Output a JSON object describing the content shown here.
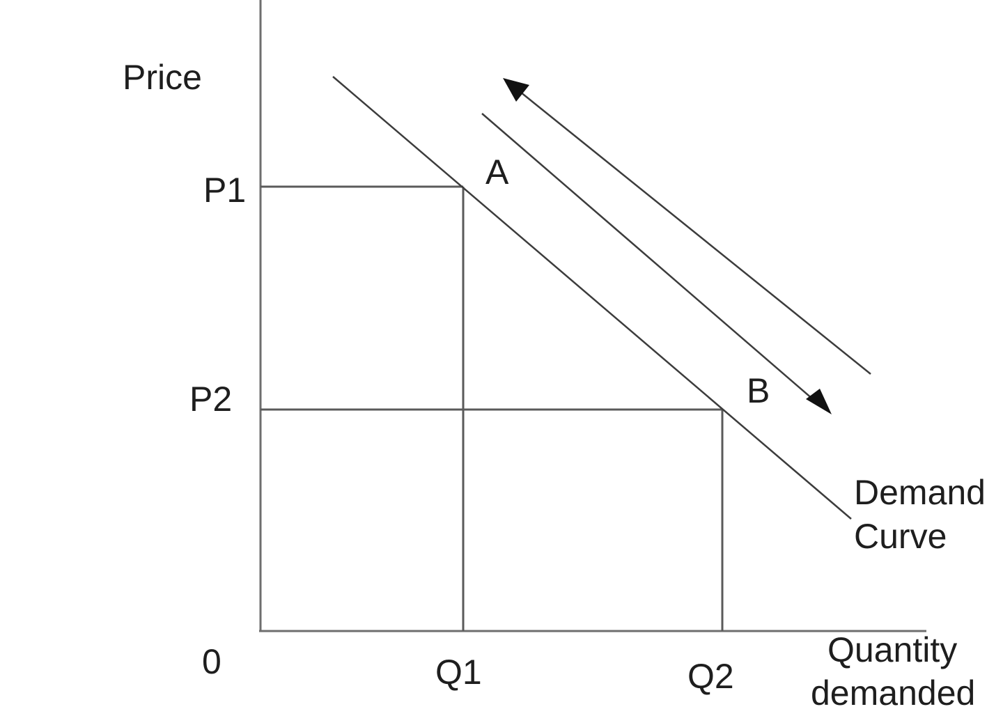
{
  "axes": {
    "y_label": "Price",
    "x_label_line1": "Quantity",
    "x_label_line2": "demanded",
    "origin_label": "0"
  },
  "price_levels": {
    "p1": "P1",
    "p2": "P2"
  },
  "quantity_levels": {
    "q1": "Q1",
    "q2": "Q2"
  },
  "points": {
    "a": "A",
    "b": "B"
  },
  "curve": {
    "label_line1": "Demand",
    "label_line2": "Curve"
  },
  "movement": {
    "arrows": [
      "up-left along curve",
      "down-right along curve"
    ]
  },
  "colors": {
    "background": "#ffffff",
    "ink": "#1e1e1e",
    "axis": "#6e6e6e"
  }
}
